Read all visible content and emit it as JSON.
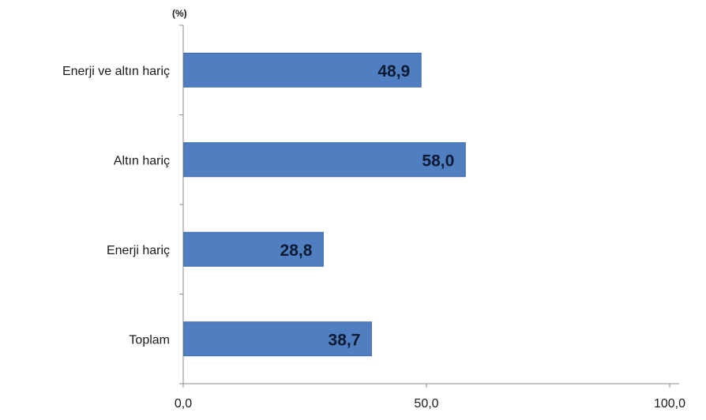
{
  "chart_data": {
    "type": "bar",
    "orientation": "horizontal",
    "unit_label": "(%)",
    "categories": [
      "Enerji ve altın hariç",
      "Altın hariç",
      "Enerji hariç",
      "Toplam"
    ],
    "values": [
      48.9,
      58.0,
      28.8,
      38.7
    ],
    "data_labels": [
      "48,9",
      "58,0",
      "28,8",
      "38,7"
    ],
    "xlim": [
      0,
      100
    ],
    "x_ticks": [
      0,
      50,
      100
    ],
    "x_tick_labels": [
      "0,0",
      "50,0",
      "100,0"
    ],
    "grid": false,
    "legend": "none",
    "bar_color": "#4f7ec1",
    "bar_edge_color": "#3d6aa8"
  }
}
